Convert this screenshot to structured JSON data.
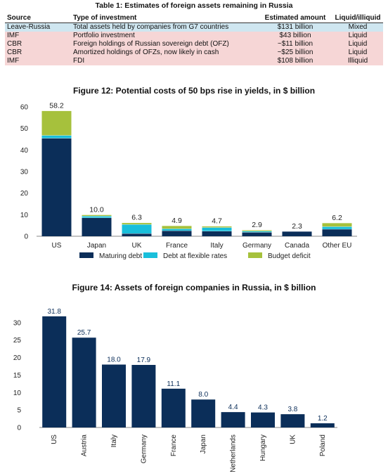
{
  "table": {
    "title": "Table 1: Estimates of foreign assets remaining in Russia",
    "headers": [
      "Source",
      "Type of investment",
      "Estimated amount",
      "Liquid/illiquid"
    ],
    "rows": [
      [
        "Leave-Russia",
        "Total assets held by companies from G7 countries",
        "$131 billion",
        "Mixed"
      ],
      [
        "IMF",
        "Portfolio investment",
        "$43 billion",
        "Liquid"
      ],
      [
        "CBR",
        "Foreign holdings of Russian sovereign debt (OFZ)",
        "~$11 billion",
        "Liquid"
      ],
      [
        "CBR",
        "Amortized holdings of OFZs, now likely in cash",
        "~$25 billion",
        "Liquid"
      ],
      [
        "IMF",
        "FDI",
        "$108 billion",
        "Illiquid"
      ]
    ]
  },
  "colors": {
    "navy": "#0b2e59",
    "cyan": "#19bfdb",
    "green": "#a6c13c",
    "table_first_row": "#cfe6f0",
    "table_pink_rows": "#f6d6d6"
  },
  "chart_data": [
    {
      "type": "bar",
      "stacked": true,
      "title": "Figure 12: Potential costs of 50 bps rise in yields, in $ billion",
      "categories": [
        "US",
        "Japan",
        "UK",
        "France",
        "Italy",
        "Germany",
        "Canada",
        "Other EU"
      ],
      "series": [
        {
          "name": "Maturing debt",
          "color": "#0b2e59",
          "values": [
            45.5,
            8.6,
            1.3,
            2.6,
            2.4,
            1.9,
            2.3,
            3.3
          ]
        },
        {
          "name": "Debt at flexible rates",
          "color": "#19bfdb",
          "values": [
            1.3,
            0.8,
            4.2,
            0.9,
            1.7,
            0.5,
            0.0,
            1.2
          ]
        },
        {
          "name": "Budget deficit",
          "color": "#a6c13c",
          "values": [
            11.4,
            0.6,
            0.8,
            1.4,
            0.6,
            0.5,
            0.0,
            1.7
          ]
        }
      ],
      "totals": [
        58.2,
        10.0,
        6.3,
        4.9,
        4.7,
        2.9,
        2.3,
        6.2
      ],
      "total_labels": [
        "58.2",
        "10.0",
        "6.3",
        "4.9",
        "4.7",
        "2.9",
        "2.3",
        "6.2"
      ],
      "ylim": [
        0,
        60
      ],
      "yticks": [
        0,
        10,
        20,
        30,
        40,
        50,
        60
      ],
      "legend_position": "bottom",
      "grid": false
    },
    {
      "type": "bar",
      "title": "Figure 14: Assets of foreign companies in Russia, in $ billion",
      "categories": [
        "US",
        "Austria",
        "Italy",
        "Germany",
        "France",
        "Japan",
        "Netherlands",
        "Hungary",
        "UK",
        "Poland"
      ],
      "values": [
        31.8,
        25.7,
        18.0,
        17.9,
        11.1,
        8.0,
        4.4,
        4.3,
        3.8,
        1.2
      ],
      "value_labels": [
        "31.8",
        "25.7",
        "18.0",
        "17.9",
        "11.1",
        "8.0",
        "4.4",
        "4.3",
        "3.8",
        "1.2"
      ],
      "color": "#0b2e59",
      "ylim": [
        0,
        35
      ],
      "yticks": [
        0,
        5,
        10,
        15,
        20,
        25,
        30
      ],
      "x_label_rotation": "vertical",
      "grid": false
    }
  ]
}
